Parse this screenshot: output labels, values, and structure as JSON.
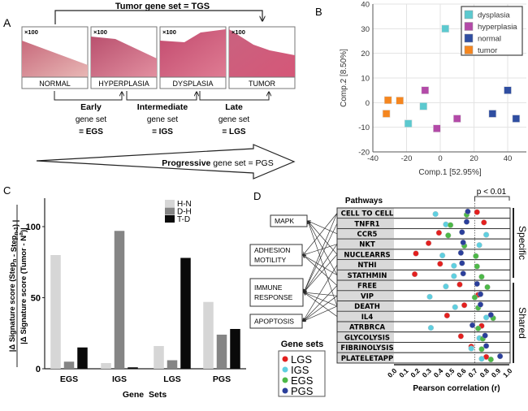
{
  "panel_labels": {
    "a": "A",
    "b": "B",
    "c": "C",
    "d": "D"
  },
  "panel_a": {
    "tgs_label": "Tumor gene set = TGS",
    "magnification": "×100",
    "stages": [
      "NORMAL",
      "HYPERPLASIA",
      "DYSPLASIA",
      "TUMOR"
    ],
    "gene_sets": [
      {
        "name": "Early",
        "sub": "gene set",
        "abbr": "= EGS"
      },
      {
        "name": "Intermediate",
        "sub": "gene set",
        "abbr": "= IGS"
      },
      {
        "name": "Late",
        "sub": "gene set",
        "abbr": "= LGS"
      }
    ],
    "progressive_bold": "Progressive",
    "progressive_rest": "gene set = PGS"
  },
  "chart_data": [
    {
      "type": "scatter",
      "panel": "B",
      "xlabel": "Comp.1 [52.95%]",
      "ylabel": "Comp.2 [8.50%]",
      "xlim": [
        -40,
        45
      ],
      "ylim": [
        -20,
        40
      ],
      "xticks": [
        -40,
        -20,
        0,
        20,
        40
      ],
      "yticks": [
        -20,
        -10,
        0,
        10,
        20,
        30,
        40
      ],
      "grid": true,
      "legend_position": "top-right",
      "series": [
        {
          "name": "dysplasia",
          "color": "#5cc9cf",
          "points": [
            [
              3,
              30
            ],
            [
              -10,
              -1.5
            ],
            [
              -19,
              -8.5
            ]
          ]
        },
        {
          "name": "hyperplasia",
          "color": "#b34aa8",
          "points": [
            [
              -9,
              5
            ],
            [
              -2,
              -10.5
            ],
            [
              10,
              -6.5
            ]
          ]
        },
        {
          "name": "normal",
          "color": "#2f4ea1",
          "points": [
            [
              40,
              5
            ],
            [
              31,
              -4.5
            ],
            [
              45,
              -6.5
            ]
          ]
        },
        {
          "name": "tumor",
          "color": "#f5861f",
          "points": [
            [
              -31,
              1
            ],
            [
              -24,
              0.8
            ],
            [
              -32,
              -4.5
            ]
          ]
        }
      ]
    },
    {
      "type": "bar",
      "panel": "C",
      "ylabel_numerator": "|Δ Signature score (Step",
      "ylabel_num_sub1": "n",
      "ylabel_num_mid": " - Step",
      "ylabel_num_sub2": "n-1",
      "ylabel_num_end": ") |",
      "ylabel_denominator": "|Δ Signature score (Tumor - N",
      "ylabel_den_sup": "a",
      "ylabel_den_end": ")|",
      "xlabel": "Gene  Sets",
      "ylim": [
        0,
        120
      ],
      "yticks": [
        0,
        50,
        100
      ],
      "legend_position": "top-right",
      "categories": [
        "EGS",
        "IGS",
        "LGS",
        "PGS"
      ],
      "series": [
        {
          "name": "H-N",
          "color": "#d6d6d6",
          "values": [
            80,
            4,
            16,
            47
          ]
        },
        {
          "name": "D-H",
          "color": "#858585",
          "values": [
            5,
            97,
            6,
            24
          ]
        },
        {
          "name": "T-D",
          "color": "#0a0a0a",
          "values": [
            15,
            1,
            78,
            28
          ]
        }
      ]
    },
    {
      "type": "scatter",
      "panel": "D",
      "title": "Pathways",
      "xlabel": "Pearson correlation (r)",
      "xlim": [
        0,
        1
      ],
      "xticks": [
        "0.0",
        "0.1",
        "0.2",
        "0.3",
        "0.4",
        "0.5",
        "0.6",
        "0.7",
        "0.8",
        "0.9",
        "1.0"
      ],
      "threshold": 0.7,
      "threshold_label": "p < 0.01",
      "groups": [
        {
          "name": "Specific",
          "rows": 7
        },
        {
          "name": "Shared",
          "rows": 8
        }
      ],
      "categories": [
        "CELL TO CELL",
        "TNFR1",
        "CCR5",
        "NKT",
        "NUCLEARRS",
        "NTHI",
        "STATHMIN",
        "FREE",
        "VIP",
        "DEATH",
        "IL4",
        "ATRBRCA",
        "GLYCOLYSIS",
        "FIBRINOLYSIS",
        "PLATELETAPP"
      ],
      "legend_title": "Gene sets",
      "series": [
        {
          "name": "LGS",
          "color": "#e3201f",
          "values": [
            0.72,
            0.78,
            0.39,
            0.3,
            0.19,
            0.4,
            0.18,
            0.57,
            0.73,
            0.61,
            0.46,
            0.76,
            0.58,
            0.67,
            0.8
          ]
        },
        {
          "name": "IGS",
          "color": "#5fcfe0",
          "values": [
            0.36,
            0.45,
            0.8,
            0.74,
            0.42,
            0.52,
            0.52,
            0.45,
            0.31,
            0.53,
            0.8,
            0.32,
            0.74,
            0.67,
            0.76
          ]
        },
        {
          "name": "EGS",
          "color": "#4db848",
          "values": [
            0.63,
            0.49,
            0.47,
            0.61,
            0.71,
            0.72,
            0.76,
            0.81,
            0.7,
            0.73,
            0.86,
            0.73,
            0.77,
            0.76,
            0.84
          ]
        },
        {
          "name": "PGS",
          "color": "#2b3f9b",
          "values": [
            0.64,
            0.63,
            0.59,
            0.6,
            0.58,
            0.59,
            0.6,
            0.72,
            0.75,
            0.75,
            0.84,
            0.68,
            0.79,
            0.8,
            0.92
          ]
        }
      ]
    }
  ],
  "panel_d": {
    "pathway_categories": [
      {
        "lines": [
          "MAPK"
        ]
      },
      {
        "lines": [
          "ADHESION",
          "MOTILITY"
        ]
      },
      {
        "lines": [
          "IMMUNE",
          "RESPONSE"
        ]
      },
      {
        "lines": [
          "APOPTOSIS"
        ]
      }
    ]
  }
}
